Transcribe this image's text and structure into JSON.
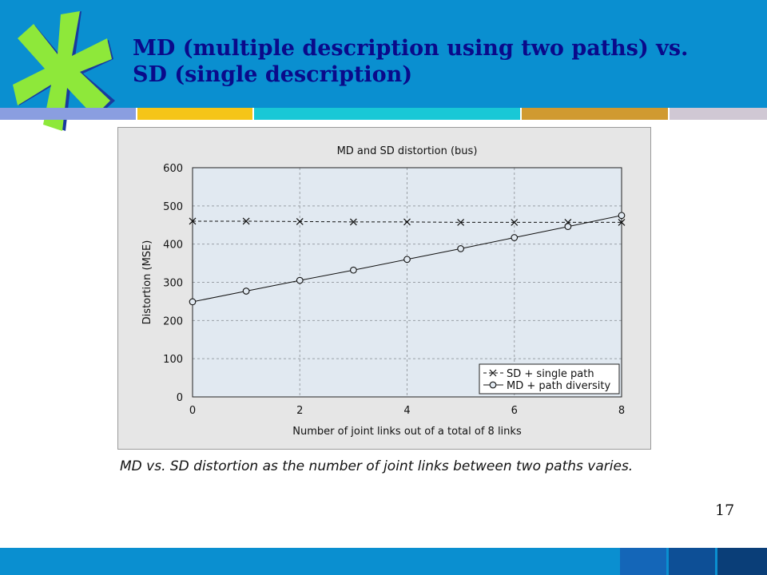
{
  "slide": {
    "title": "MD (multiple description using two paths) vs.\nSD (single description)",
    "caption": "MD vs. SD distortion as the number of joint links between two paths varies.",
    "page_number": "17"
  },
  "colors": {
    "header": "#0a8fd0",
    "title": "#0a0a8a",
    "strip": [
      "#8a9ee0",
      "#f5c518",
      "#19c8d6",
      "#d09a30",
      "#d0c8d4"
    ],
    "logo_green": "#8ee83a",
    "logo_blue": "#1a3a9e"
  },
  "chart_data": {
    "type": "line",
    "title": "MD and SD distortion (bus)",
    "xlabel": "Number of joint links out of a total of 8 links",
    "ylabel": "Distortion (MSE)",
    "xlim": [
      0,
      8
    ],
    "ylim": [
      0,
      600
    ],
    "xticks": [
      0,
      2,
      4,
      6,
      8
    ],
    "yticks": [
      0,
      100,
      200,
      300,
      400,
      500,
      600
    ],
    "grid": true,
    "legend_position": "bottom-right",
    "series": [
      {
        "name": "SD + single path",
        "marker": "x",
        "style": "dashed",
        "x": [
          0,
          1,
          2,
          3,
          4,
          5,
          6,
          7,
          8
        ],
        "y": [
          460,
          460,
          459,
          458,
          458,
          457,
          457,
          457,
          457
        ]
      },
      {
        "name": "MD + path diversity",
        "marker": "o",
        "style": "solid",
        "x": [
          0,
          1,
          2,
          3,
          4,
          5,
          6,
          7,
          8
        ],
        "y": [
          249,
          277,
          305,
          332,
          360,
          388,
          417,
          446,
          475
        ]
      }
    ]
  }
}
